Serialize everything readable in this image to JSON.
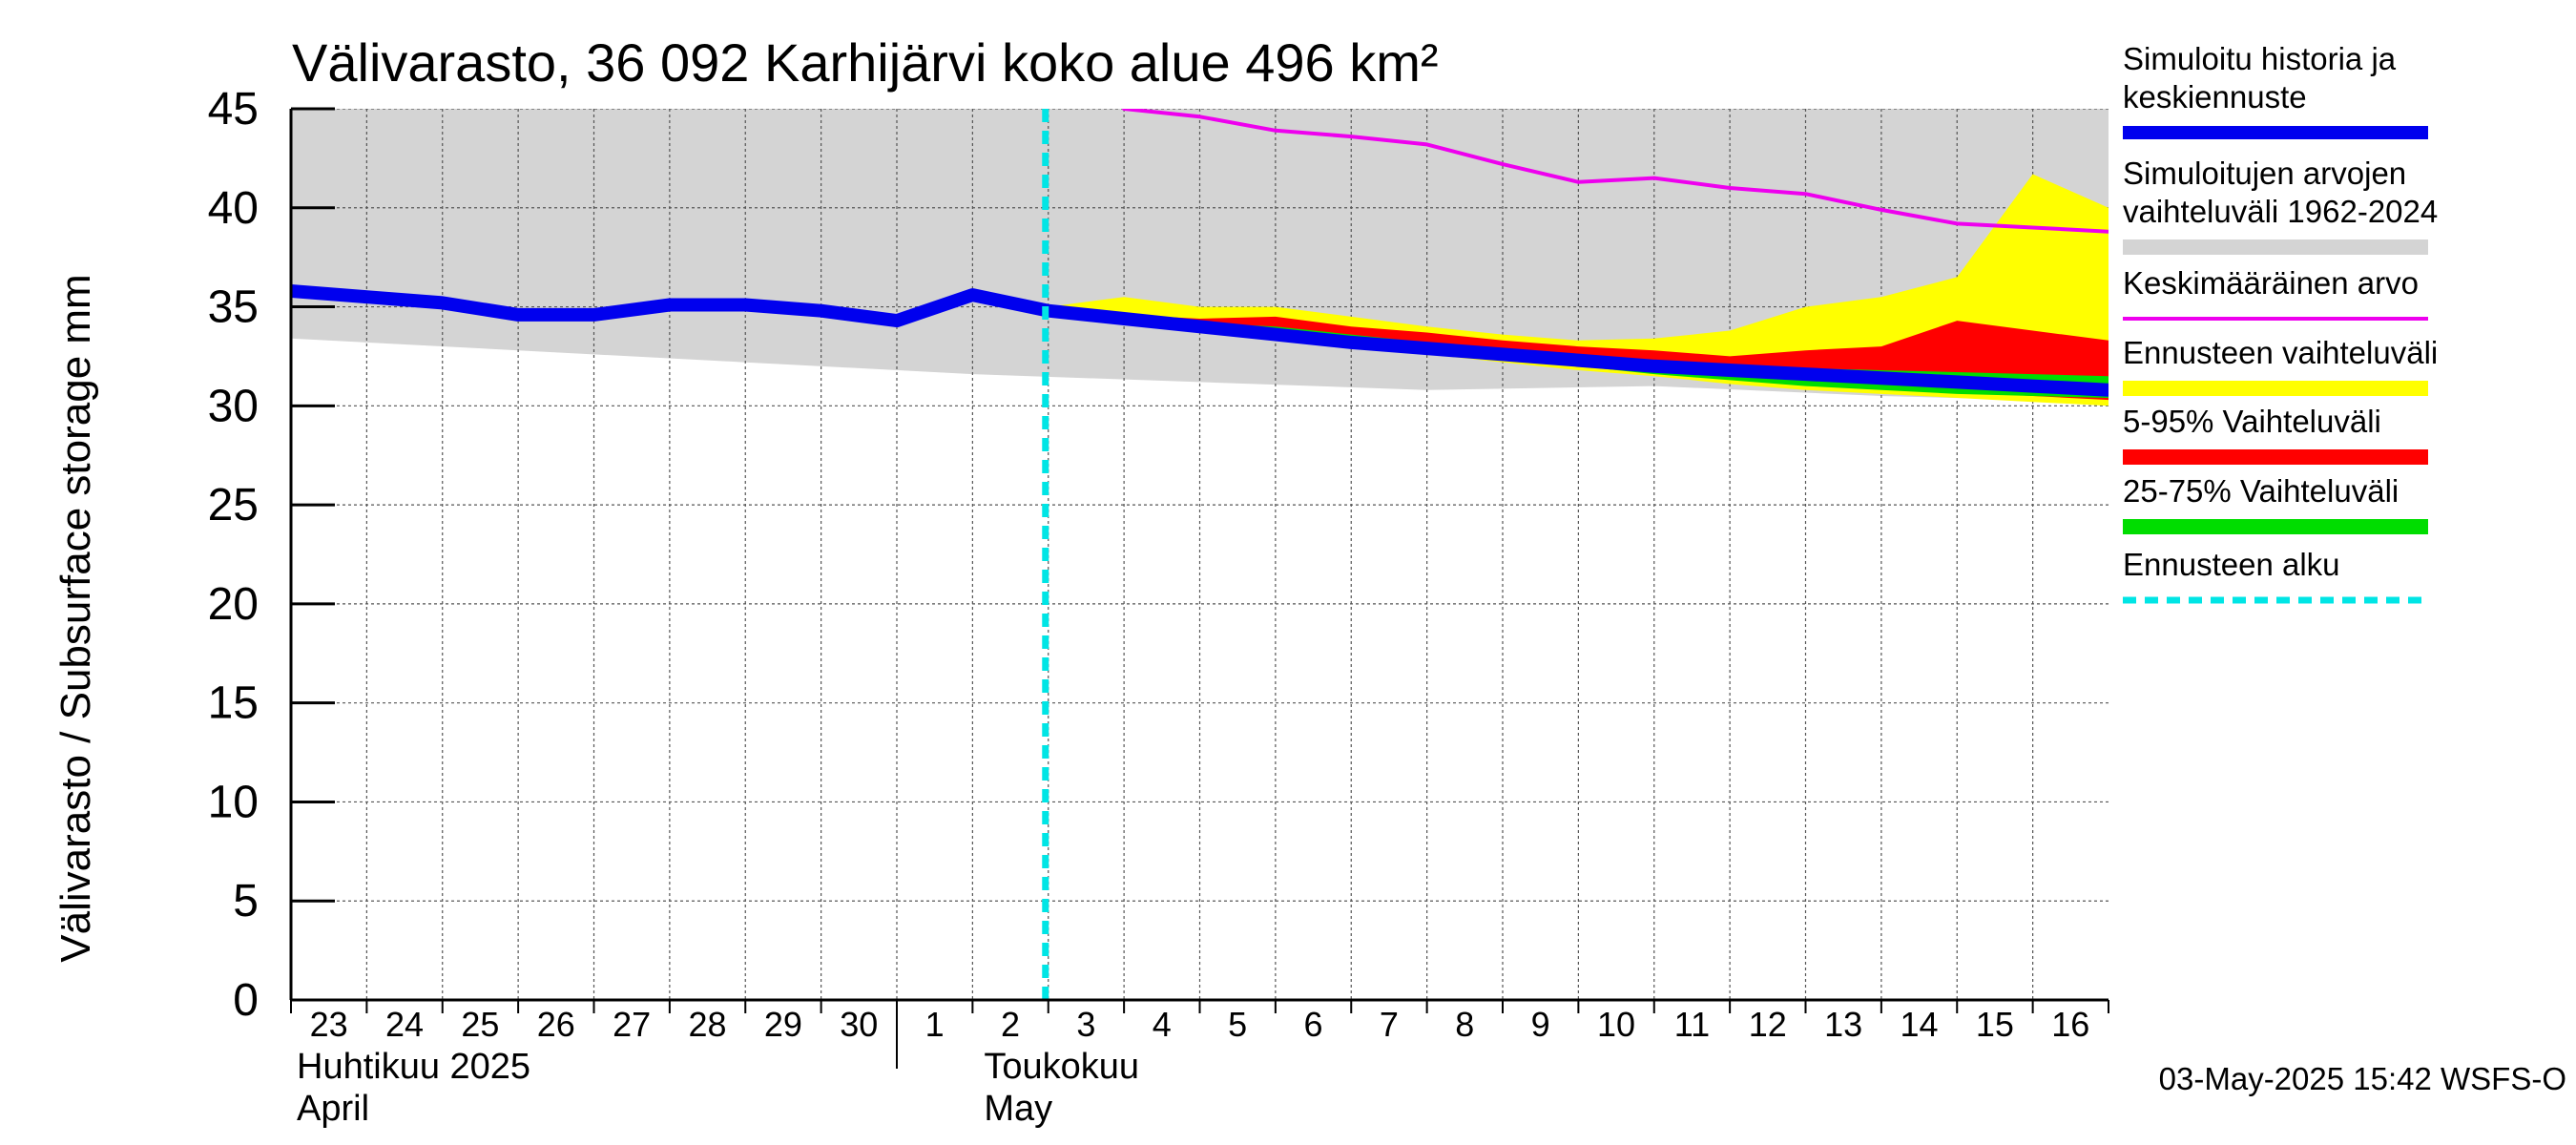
{
  "chart_data": {
    "type": "area",
    "title": "Välivarasto, 36 092 Karhijärvi koko alue 496 km²",
    "ylabel": "Välivarasto / Subsurface storage  mm",
    "ylim": [
      0,
      45
    ],
    "y_ticks": [
      0,
      5,
      10,
      15,
      20,
      25,
      30,
      35,
      40,
      45
    ],
    "x_start": "2025-04-23",
    "x_end": "2025-05-17",
    "x_tick_labels": [
      "23",
      "24",
      "25",
      "26",
      "27",
      "28",
      "29",
      "30",
      "1",
      "2",
      "3",
      "4",
      "5",
      "6",
      "7",
      "8",
      "9",
      "10",
      "11",
      "12",
      "13",
      "14",
      "15",
      "16"
    ],
    "month_labels": [
      {
        "fi": "Huhtikuu  2025",
        "en": "April"
      },
      {
        "fi": "Toukokuu",
        "en": "May"
      }
    ],
    "forecast_start": "2025-05-03",
    "grid": true,
    "legend_position": "right",
    "legend": [
      {
        "id": "history",
        "label_lines": [
          "Simuloitu historia ja",
          "keskiennuste"
        ],
        "color": "#0000ee",
        "style": "thick-line"
      },
      {
        "id": "range",
        "label_lines": [
          "Simuloitujen arvojen",
          "vaihteluväli 1962-2024"
        ],
        "color": "#d4d4d4",
        "style": "band"
      },
      {
        "id": "mean",
        "label_lines": [
          "Keskimääräinen arvo"
        ],
        "color": "#ee00ee",
        "style": "line"
      },
      {
        "id": "forecast_range",
        "label_lines": [
          "Ennusteen vaihteluväli"
        ],
        "color": "#ffff00",
        "style": "band"
      },
      {
        "id": "p5_95",
        "label_lines": [
          "5-95% Vaihteluväli"
        ],
        "color": "#ff0000",
        "style": "band"
      },
      {
        "id": "p25_75",
        "label_lines": [
          "25-75% Vaihteluväli"
        ],
        "color": "#00dd00",
        "style": "band"
      },
      {
        "id": "forecast_start",
        "label_lines": [
          "Ennusteen alku"
        ],
        "color": "#00e5e5",
        "style": "dashed-line"
      }
    ],
    "series": [
      {
        "name": "Simuloitujen arvojen vaihteluväli 1962-2024",
        "x": [
          "2025-04-23",
          "2025-04-26",
          "2025-04-29",
          "2025-05-02",
          "2025-05-05",
          "2025-05-08",
          "2025-05-11",
          "2025-05-14",
          "2025-05-17"
        ],
        "upper": [
          45,
          45,
          45,
          45,
          45,
          45,
          45,
          45,
          45
        ],
        "lower": [
          33.4,
          32.8,
          32.2,
          31.6,
          31.2,
          30.8,
          31.0,
          30.5,
          30.2
        ]
      },
      {
        "name": "Keskimääräinen arvo",
        "x": [
          "2025-05-04",
          "2025-05-05",
          "2025-05-06",
          "2025-05-07",
          "2025-05-08",
          "2025-05-09",
          "2025-05-10",
          "2025-05-11",
          "2025-05-12",
          "2025-05-13",
          "2025-05-14",
          "2025-05-15",
          "2025-05-16",
          "2025-05-17"
        ],
        "values": [
          45.0,
          44.6,
          43.9,
          43.6,
          43.2,
          42.2,
          41.3,
          41.5,
          41.0,
          40.7,
          39.9,
          39.2,
          39.0,
          38.8
        ]
      },
      {
        "name": "Ennusteen vaihteluväli",
        "x": [
          "2025-05-03",
          "2025-05-04",
          "2025-05-05",
          "2025-05-06",
          "2025-05-07",
          "2025-05-08",
          "2025-05-09",
          "2025-05-10",
          "2025-05-11",
          "2025-05-12",
          "2025-05-13",
          "2025-05-14",
          "2025-05-15",
          "2025-05-16",
          "2025-05-17"
        ],
        "upper": [
          35.0,
          35.5,
          35.0,
          35.0,
          34.5,
          34.0,
          33.6,
          33.3,
          33.4,
          33.8,
          35.0,
          35.5,
          36.5,
          41.7,
          40.0
        ],
        "lower": [
          34.8,
          34.3,
          33.9,
          33.4,
          33.0,
          32.6,
          32.2,
          31.8,
          31.5,
          31.1,
          30.8,
          30.6,
          30.4,
          30.2,
          30.0
        ]
      },
      {
        "name": "5-95% Vaihteluväli",
        "x": [
          "2025-05-03",
          "2025-05-04",
          "2025-05-05",
          "2025-05-06",
          "2025-05-07",
          "2025-05-08",
          "2025-05-09",
          "2025-05-10",
          "2025-05-11",
          "2025-05-12",
          "2025-05-13",
          "2025-05-14",
          "2025-05-15",
          "2025-05-16",
          "2025-05-17"
        ],
        "upper": [
          34.8,
          34.6,
          34.4,
          34.5,
          34.0,
          33.7,
          33.3,
          33.0,
          32.8,
          32.5,
          32.8,
          33.0,
          34.3,
          33.8,
          33.3
        ],
        "lower": [
          34.8,
          34.4,
          34.0,
          33.6,
          33.2,
          32.8,
          32.4,
          32.0,
          31.7,
          31.4,
          31.1,
          30.9,
          30.7,
          30.5,
          30.3
        ]
      },
      {
        "name": "25-75% Vaihteluväli",
        "x": [
          "2025-05-03",
          "2025-05-04",
          "2025-05-05",
          "2025-05-06",
          "2025-05-07",
          "2025-05-08",
          "2025-05-09",
          "2025-05-10",
          "2025-05-11",
          "2025-05-12",
          "2025-05-13",
          "2025-05-14",
          "2025-05-15",
          "2025-05-16",
          "2025-05-17"
        ],
        "upper": [
          34.8,
          34.5,
          34.2,
          34.0,
          33.6,
          33.2,
          32.9,
          32.6,
          32.3,
          32.0,
          31.9,
          31.8,
          31.7,
          31.6,
          31.5
        ],
        "lower": [
          34.8,
          34.4,
          34.0,
          33.6,
          33.2,
          32.8,
          32.4,
          32.0,
          31.6,
          31.3,
          31.0,
          30.8,
          30.6,
          30.5,
          30.4
        ]
      },
      {
        "name": "Simuloitu historia ja keskiennuste",
        "x": [
          "2025-04-23",
          "2025-04-24",
          "2025-04-25",
          "2025-04-26",
          "2025-04-27",
          "2025-04-28",
          "2025-04-29",
          "2025-04-30",
          "2025-05-01",
          "2025-05-02",
          "2025-05-03",
          "2025-05-04",
          "2025-05-05",
          "2025-05-06",
          "2025-05-07",
          "2025-05-08",
          "2025-05-09",
          "2025-05-10",
          "2025-05-11",
          "2025-05-12",
          "2025-05-13",
          "2025-05-14",
          "2025-05-15",
          "2025-05-16",
          "2025-05-17"
        ],
        "values": [
          35.8,
          35.5,
          35.2,
          34.6,
          34.6,
          35.1,
          35.1,
          34.8,
          34.3,
          35.6,
          34.8,
          34.4,
          34.0,
          33.6,
          33.2,
          32.9,
          32.6,
          32.3,
          32.0,
          31.8,
          31.6,
          31.4,
          31.2,
          31.0,
          30.8
        ]
      }
    ]
  },
  "footer": {
    "timestamp": "03-May-2025 15:42 WSFS-O"
  }
}
